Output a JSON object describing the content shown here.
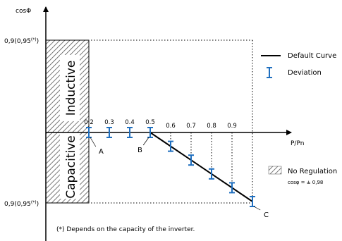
{
  "chart_data": {
    "type": "line",
    "ylabel": "cosΦ",
    "xlabel": "P/Pn",
    "y_top_label": "0,9(0,95",
    "y_bottom_label": "0,9(0,95",
    "y_label_sup": "(*)",
    "y_label_close": ")",
    "inductive_label": "Inductive",
    "capacitive_label": "Capacitive",
    "x_ticks": [
      "0.2",
      "0.3",
      "0.4",
      "0.5",
      "0.6",
      "0.7",
      "0.8",
      "0.9"
    ],
    "deviation_points": [
      {
        "x": 0.2,
        "y": 0
      },
      {
        "x": 0.3,
        "y": 0
      },
      {
        "x": 0.4,
        "y": 0
      },
      {
        "x": 0.5,
        "y": 0
      },
      {
        "x": 0.6,
        "y": -0.2
      },
      {
        "x": 0.7,
        "y": -0.4
      },
      {
        "x": 0.8,
        "y": -0.6
      },
      {
        "x": 0.9,
        "y": -0.8
      },
      {
        "x": 1.0,
        "y": -1.0
      }
    ],
    "default_curve": [
      {
        "x": 0.5,
        "y": 0
      },
      {
        "x": 1.0,
        "y": -1.0
      }
    ],
    "point_labels": [
      {
        "text": "A",
        "x": 0.2,
        "y": 0
      },
      {
        "text": "B",
        "x": 0.5,
        "y": 0
      },
      {
        "text": "C",
        "x": 1.0,
        "y": -1.0
      }
    ],
    "legend": {
      "default_curve": "Default Curve",
      "deviation": "Deviation",
      "no_regulation": "No Regulation",
      "cos_note": "cosφ = ± 0,98"
    },
    "footnote": "(*) Depends on the capacity of the inverter.",
    "colors": {
      "deviation": "#1f6fbf",
      "curve": "#000000",
      "axis": "#000000"
    }
  }
}
